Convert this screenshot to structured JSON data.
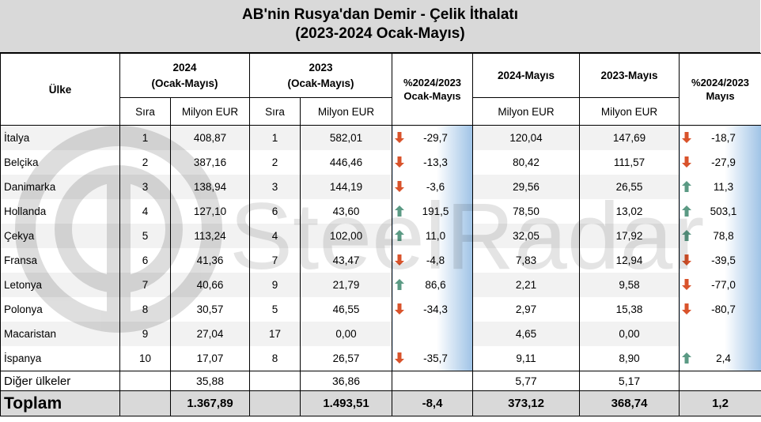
{
  "title": {
    "line1": "AB'nin Rusya'dan Demir - Çelik İthalatı",
    "line2": "(2023-2024 Ocak-Mayıs)"
  },
  "headers": {
    "country": "Ülke",
    "y2024": "2024",
    "y2024_period": "(Ocak-Mayıs)",
    "y2023": "2023",
    "y2023_period": "(Ocak-Mayıs)",
    "pct_jan_may_l1": "%2024/2023",
    "pct_jan_may_l2": "Ocak-Mayıs",
    "may2024": "2024-Mayıs",
    "may2023": "2023-Mayıs",
    "pct_may_l1": "%2024/2023",
    "pct_may_l2": "Mayıs",
    "rank": "Sıra",
    "million_eur": "Milyon EUR"
  },
  "rows": [
    {
      "country": "İtalya",
      "rank2024": "1",
      "val2024": "408,87",
      "rank2023": "1",
      "val2023": "582,01",
      "pct_jm": "-29,7",
      "dir_jm": "down",
      "may2024": "120,04",
      "may2023": "147,69",
      "pct_may": "-18,7",
      "dir_may": "down"
    },
    {
      "country": "Belçika",
      "rank2024": "2",
      "val2024": "387,16",
      "rank2023": "2",
      "val2023": "446,46",
      "pct_jm": "-13,3",
      "dir_jm": "down",
      "may2024": "80,42",
      "may2023": "111,57",
      "pct_may": "-27,9",
      "dir_may": "down"
    },
    {
      "country": "Danimarka",
      "rank2024": "3",
      "val2024": "138,94",
      "rank2023": "3",
      "val2023": "144,19",
      "pct_jm": "-3,6",
      "dir_jm": "down",
      "may2024": "29,56",
      "may2023": "26,55",
      "pct_may": "11,3",
      "dir_may": "up"
    },
    {
      "country": "Hollanda",
      "rank2024": "4",
      "val2024": "127,10",
      "rank2023": "6",
      "val2023": "43,60",
      "pct_jm": "191,5",
      "dir_jm": "up",
      "may2024": "78,50",
      "may2023": "13,02",
      "pct_may": "503,1",
      "dir_may": "up"
    },
    {
      "country": "Çekya",
      "rank2024": "5",
      "val2024": "113,24",
      "rank2023": "4",
      "val2023": "102,00",
      "pct_jm": "11,0",
      "dir_jm": "up",
      "may2024": "32,05",
      "may2023": "17,92",
      "pct_may": "78,8",
      "dir_may": "up"
    },
    {
      "country": "Fransa",
      "rank2024": "6",
      "val2024": "41,36",
      "rank2023": "7",
      "val2023": "43,47",
      "pct_jm": "-4,8",
      "dir_jm": "down",
      "may2024": "7,83",
      "may2023": "12,94",
      "pct_may": "-39,5",
      "dir_may": "down"
    },
    {
      "country": "Letonya",
      "rank2024": "7",
      "val2024": "40,66",
      "rank2023": "9",
      "val2023": "21,79",
      "pct_jm": "86,6",
      "dir_jm": "up",
      "may2024": "2,21",
      "may2023": "9,58",
      "pct_may": "-77,0",
      "dir_may": "down"
    },
    {
      "country": "Polonya",
      "rank2024": "8",
      "val2024": "30,57",
      "rank2023": "5",
      "val2023": "46,55",
      "pct_jm": "-34,3",
      "dir_jm": "down",
      "may2024": "2,97",
      "may2023": "15,38",
      "pct_may": "-80,7",
      "dir_may": "down"
    },
    {
      "country": "Macaristan",
      "rank2024": "9",
      "val2024": "27,04",
      "rank2023": "17",
      "val2023": "0,00",
      "pct_jm": "",
      "dir_jm": "",
      "may2024": "4,65",
      "may2023": "0,00",
      "pct_may": "",
      "dir_may": ""
    },
    {
      "country": "İspanya",
      "rank2024": "10",
      "val2024": "17,07",
      "rank2023": "8",
      "val2023": "26,57",
      "pct_jm": "-35,7",
      "dir_jm": "down",
      "may2024": "9,11",
      "may2023": "8,90",
      "pct_may": "2,4",
      "dir_may": "up"
    }
  ],
  "other": {
    "label": "Diğer ülkeler",
    "val2024": "35,88",
    "val2023": "36,86",
    "may2024": "5,77",
    "may2023": "5,17"
  },
  "total": {
    "label": "Toplam",
    "val2024": "1.367,89",
    "val2023": "1.493,51",
    "pct_jm": "-8,4",
    "may2024": "373,12",
    "may2023": "368,74",
    "pct_may": "1,2"
  },
  "watermark": "SteelRadar",
  "colors": {
    "up": "#5b9a84",
    "down": "#d9532b",
    "header_bg": "#d9d9d9",
    "gradient_end": "#9fc3e6"
  }
}
